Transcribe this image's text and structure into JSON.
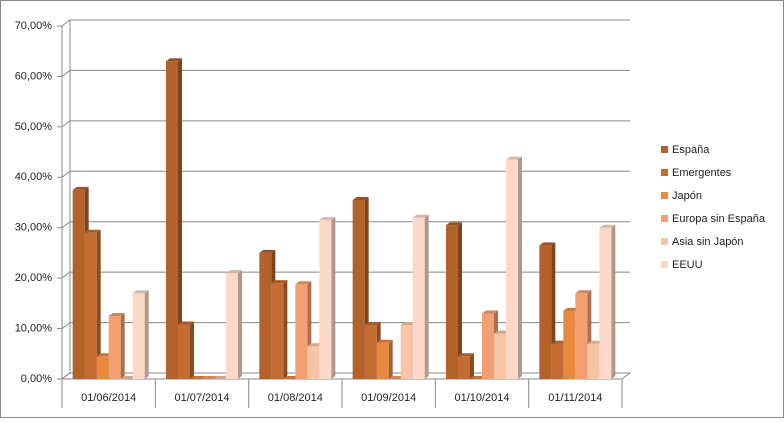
{
  "chart_data": {
    "type": "bar3d",
    "categories": [
      "01/06/2014",
      "01/07/2014",
      "01/08/2014",
      "01/09/2014",
      "01/10/2014",
      "01/11/2014"
    ],
    "series": [
      {
        "name": "España",
        "color": "#b3622a",
        "values": [
          37.5,
          63,
          25,
          35.5,
          30.5,
          26.5
        ]
      },
      {
        "name": "Emergentes",
        "color": "#c46d32",
        "values": [
          29,
          10.8,
          19,
          10.7,
          4.5,
          7
        ]
      },
      {
        "name": "Japón",
        "color": "#e8893e",
        "values": [
          4.5,
          0,
          0,
          7.2,
          0,
          13.5
        ]
      },
      {
        "name": "Europa sin España",
        "color": "#f2a071",
        "values": [
          12.5,
          0,
          18.8,
          0,
          13,
          17
        ]
      },
      {
        "name": "Asia sin Japón",
        "color": "#f8c4a7",
        "values": [
          0,
          0,
          6.5,
          10.7,
          9,
          7
        ]
      },
      {
        "name": "EEUU",
        "color": "#fbd8c8",
        "values": [
          17,
          21,
          31.5,
          32,
          43.5,
          30
        ]
      }
    ],
    "ylim": [
      0,
      70
    ],
    "yticks": [
      {
        "value": 0,
        "label": "0,00%"
      },
      {
        "value": 10,
        "label": "10,00%"
      },
      {
        "value": 20,
        "label": "20,00%"
      },
      {
        "value": 30,
        "label": "30,00%"
      },
      {
        "value": 40,
        "label": "40,00%"
      },
      {
        "value": 50,
        "label": "50,00%"
      },
      {
        "value": 60,
        "label": "60,00%"
      },
      {
        "value": 70,
        "label": "70,00%"
      }
    ],
    "grid": true,
    "legend": "right"
  }
}
